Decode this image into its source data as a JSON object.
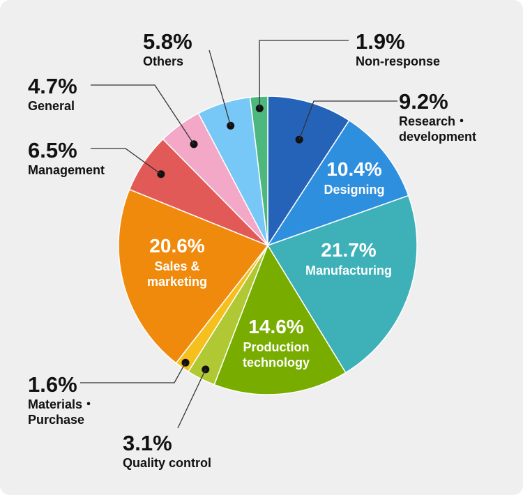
{
  "chart_data": {
    "type": "pie",
    "slices": [
      {
        "percent": "9.2%",
        "value": 9.2,
        "label_lines": [
          "Research・",
          "development"
        ],
        "color": "#2563b8"
      },
      {
        "percent": "10.4%",
        "value": 10.4,
        "label_lines": [
          "Designing"
        ],
        "color": "#2f8fdf"
      },
      {
        "percent": "21.7%",
        "value": 21.7,
        "label_lines": [
          "Manufacturing"
        ],
        "color": "#3db0b8"
      },
      {
        "percent": "14.6%",
        "value": 14.6,
        "label_lines": [
          "Production",
          "technology"
        ],
        "color": "#78ad00"
      },
      {
        "percent": "3.1%",
        "value": 3.1,
        "label_lines": [
          "Quality control"
        ],
        "color": "#b0c834"
      },
      {
        "percent": "1.6%",
        "value": 1.6,
        "label_lines": [
          "Materials・",
          "Purchase"
        ],
        "color": "#f5c01e"
      },
      {
        "percent": "20.6%",
        "value": 20.6,
        "label_lines": [
          "Sales &",
          "marketing"
        ],
        "color": "#f08a0c"
      },
      {
        "percent": "6.5%",
        "value": 6.5,
        "label_lines": [
          "Management"
        ],
        "color": "#e25a58"
      },
      {
        "percent": "4.7%",
        "value": 4.7,
        "label_lines": [
          "General"
        ],
        "color": "#f2a8c6"
      },
      {
        "percent": "5.8%",
        "value": 5.8,
        "label_lines": [
          "Others"
        ],
        "color": "#78c8f7"
      },
      {
        "percent": "1.9%",
        "value": 1.9,
        "label_lines": [
          "Non-response"
        ],
        "color": "#4cb87e"
      }
    ]
  }
}
